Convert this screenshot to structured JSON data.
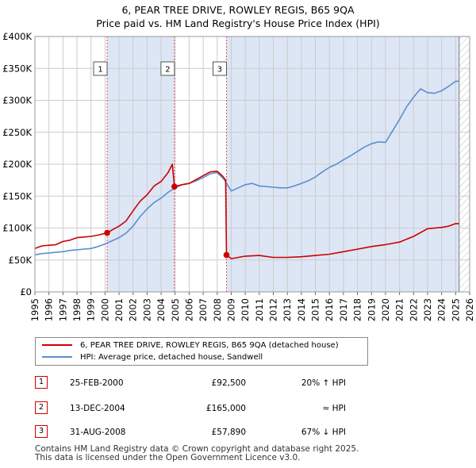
{
  "title": {
    "line1": "6, PEAR TREE DRIVE, ROWLEY REGIS, B65 9QA",
    "line2": "Price paid vs. HM Land Registry's House Price Index (HPI)"
  },
  "colors": {
    "property": "#cc0000",
    "hpi": "#5b8fd0",
    "shade": "#dde6f5",
    "grid": "#cccccc"
  },
  "chart_data": {
    "type": "line",
    "ylim": [
      0,
      400000
    ],
    "xlim": [
      1995,
      2026
    ],
    "y_ticks": [
      0,
      50000,
      100000,
      150000,
      200000,
      250000,
      300000,
      350000,
      400000
    ],
    "y_tick_labels": [
      "£0",
      "£50K",
      "£100K",
      "£150K",
      "£200K",
      "£250K",
      "£300K",
      "£350K",
      "£400K"
    ],
    "x_ticks": [
      "1995",
      "1996",
      "1997",
      "1998",
      "1999",
      "2000",
      "2001",
      "2002",
      "2003",
      "2004",
      "2005",
      "2006",
      "2007",
      "2008",
      "2009",
      "2010",
      "2011",
      "2012",
      "2013",
      "2014",
      "2015",
      "2016",
      "2017",
      "2018",
      "2019",
      "2020",
      "2021",
      "2022",
      "2023",
      "2024",
      "2025",
      "2026"
    ],
    "shaded_spans": [
      [
        2000.15,
        2004.95
      ],
      [
        2008.66,
        2025.25
      ]
    ],
    "data_end": 2025.25,
    "series": [
      {
        "name": "6, PEAR TREE DRIVE, ROWLEY REGIS, B65 9QA (detached house)",
        "color": "#cc0000",
        "x": [
          1995,
          1995.5,
          1996,
          1996.5,
          1997,
          1997.5,
          1998,
          1998.5,
          1999,
          1999.5,
          2000.15,
          2000.5,
          2001,
          2001.5,
          2002,
          2002.5,
          2003,
          2003.5,
          2004,
          2004.5,
          2004.8,
          2004.95,
          2005.5,
          2006,
          2006.5,
          2007,
          2007.5,
          2008,
          2008.4,
          2008.6,
          2008.66,
          2009,
          2009.5,
          2010,
          2011,
          2012,
          2013,
          2014,
          2015,
          2016,
          2017,
          2018,
          2019,
          2020,
          2021,
          2022,
          2023,
          2024,
          2024.5,
          2025,
          2025.25
        ],
        "values": [
          68000,
          72000,
          73000,
          74000,
          79000,
          81000,
          85000,
          86000,
          87000,
          89000,
          92500,
          97000,
          103000,
          111000,
          127000,
          142000,
          152000,
          166000,
          173000,
          187000,
          200000,
          165000,
          168000,
          170000,
          176000,
          182000,
          188000,
          189000,
          181000,
          175000,
          57890,
          52000,
          54000,
          56000,
          57000,
          54000,
          54000,
          55000,
          57000,
          59000,
          63000,
          67000,
          71000,
          74000,
          78000,
          87000,
          99000,
          101000,
          103000,
          107000,
          107000
        ]
      },
      {
        "name": "HPI: Average price, detached house, Sandwell",
        "color": "#5b8fd0",
        "x": [
          1995,
          1995.5,
          1996,
          1996.5,
          1997,
          1997.5,
          1998,
          1998.5,
          1999,
          1999.5,
          2000,
          2000.5,
          2001,
          2001.5,
          2002,
          2002.5,
          2003,
          2003.5,
          2004,
          2004.5,
          2005,
          2005.5,
          2006,
          2006.5,
          2007,
          2007.5,
          2008,
          2008.5,
          2009,
          2009.5,
          2010,
          2010.5,
          2011,
          2011.5,
          2012,
          2012.5,
          2013,
          2013.5,
          2014,
          2014.5,
          2015,
          2015.5,
          2016,
          2016.5,
          2017,
          2017.5,
          2018,
          2018.5,
          2019,
          2019.5,
          2020,
          2020.5,
          2021,
          2021.5,
          2022,
          2022.5,
          2023,
          2023.5,
          2024,
          2024.5,
          2025,
          2025.25
        ],
        "values": [
          58000,
          60000,
          61000,
          62000,
          63000,
          65000,
          66000,
          67000,
          68000,
          71000,
          75000,
          80000,
          85000,
          92000,
          103000,
          118000,
          130000,
          140000,
          147000,
          156000,
          163000,
          168000,
          170000,
          174000,
          179000,
          185000,
          187000,
          176000,
          158000,
          163000,
          168000,
          170000,
          166000,
          165000,
          164000,
          163000,
          163000,
          166000,
          170000,
          174000,
          180000,
          188000,
          195000,
          200000,
          207000,
          213000,
          220000,
          227000,
          232000,
          235000,
          234000,
          252000,
          270000,
          290000,
          305000,
          318000,
          312000,
          311000,
          315000,
          322000,
          330000,
          330000
        ]
      }
    ],
    "transactions": [
      {
        "n": "1",
        "x": 2000.15,
        "price": 92500
      },
      {
        "n": "2",
        "x": 2004.95,
        "price": 165000
      },
      {
        "n": "3",
        "x": 2008.66,
        "price": 57890
      }
    ]
  },
  "legend": {
    "property_label": "6, PEAR TREE DRIVE, ROWLEY REGIS, B65 9QA (detached house)",
    "hpi_label": "HPI: Average price, detached house, Sandwell"
  },
  "transactions_table": [
    {
      "n": "1",
      "date": "25-FEB-2000",
      "price": "£92,500",
      "hpi": "20% ↑ HPI"
    },
    {
      "n": "2",
      "date": "13-DEC-2004",
      "price": "£165,000",
      "hpi": "≈ HPI"
    },
    {
      "n": "3",
      "date": "31-AUG-2008",
      "price": "£57,890",
      "hpi": "67% ↓ HPI"
    }
  ],
  "footer": {
    "line1": "Contains HM Land Registry data © Crown copyright and database right 2025.",
    "line2": "This data is licensed under the Open Government Licence v3.0."
  }
}
